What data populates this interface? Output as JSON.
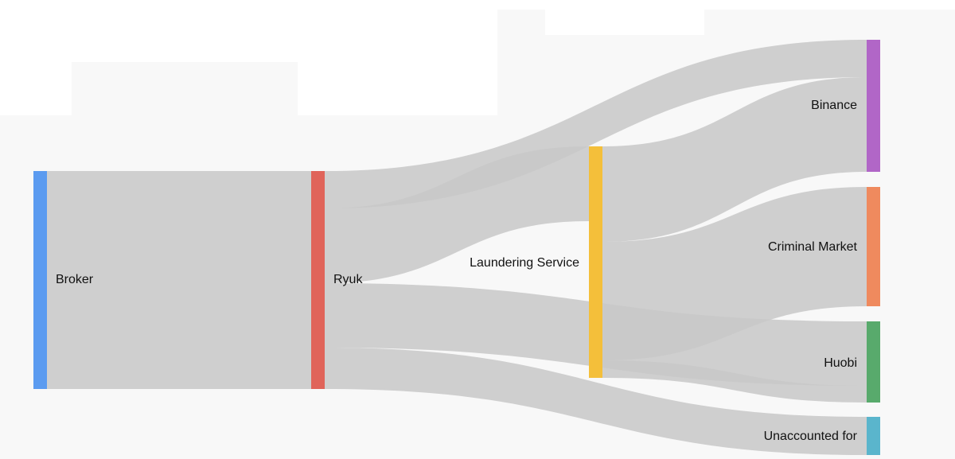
{
  "chart_data": {
    "type": "sankey",
    "nodes": [
      {
        "id": "broker",
        "label": "Broker",
        "color": "#5b9bf0"
      },
      {
        "id": "ryuk",
        "label": "Ryuk",
        "color": "#e0645a"
      },
      {
        "id": "laundering",
        "label": "Laundering Service",
        "color": "#f4bf3a"
      },
      {
        "id": "binance",
        "label": "Binance",
        "color": "#b166c7"
      },
      {
        "id": "criminal",
        "label": "Criminal Market",
        "color": "#ef8a5e"
      },
      {
        "id": "huobi",
        "label": "Huobi",
        "color": "#58aa6c"
      },
      {
        "id": "unaccounted",
        "label": "Unaccounted for",
        "color": "#5ab5cc"
      }
    ],
    "links": [
      {
        "source": "broker",
        "target": "ryuk",
        "value": 162
      },
      {
        "source": "broker",
        "target": "ryuk",
        "value": 115
      },
      {
        "source": "ryuk",
        "target": "binance",
        "value": 47
      },
      {
        "source": "ryuk",
        "target": "laundering",
        "value": 94
      },
      {
        "source": "ryuk",
        "target": "huobi",
        "value": 80
      },
      {
        "source": "ryuk",
        "target": "unaccounted",
        "value": 56
      },
      {
        "source": "laundering",
        "target": "binance",
        "value": 120
      },
      {
        "source": "laundering",
        "target": "criminal",
        "value": 150
      },
      {
        "source": "laundering",
        "target": "huobi",
        "value": 24
      }
    ],
    "link_color": "#c8c8c8"
  }
}
